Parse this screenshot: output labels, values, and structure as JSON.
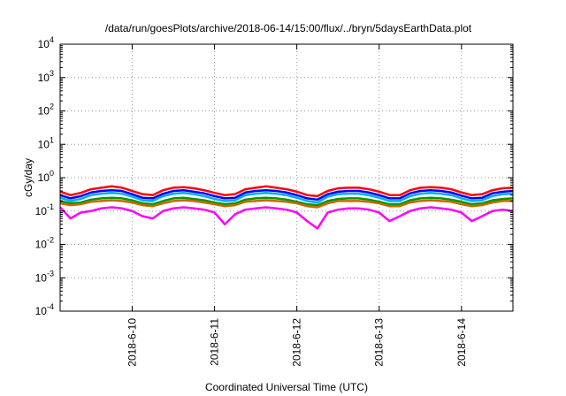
{
  "chart_data": {
    "type": "line",
    "title": "/data/run/goesPlots/archive/2018-06-14/15:00/flux/../bryn/5daysEarthData.plot",
    "xlabel": "Coordinated Universal Time (UTC)",
    "ylabel": "cGy/day",
    "y_scale": "log",
    "ylim": [
      0.0001,
      10000
    ],
    "xlim": [
      "2018-06-09T03:00",
      "2018-06-14T15:00"
    ],
    "grid": true,
    "legend": "none",
    "y_ticks": [
      {
        "value": 0.0001,
        "base": "10",
        "exp": "-4"
      },
      {
        "value": 0.001,
        "base": "10",
        "exp": "-3"
      },
      {
        "value": 0.01,
        "base": "10",
        "exp": "-2"
      },
      {
        "value": 0.1,
        "base": "10",
        "exp": "-1"
      },
      {
        "value": 1,
        "base": "10",
        "exp": "0"
      },
      {
        "value": 10,
        "base": "10",
        "exp": "1"
      },
      {
        "value": 100,
        "base": "10",
        "exp": "2"
      },
      {
        "value": 1000,
        "base": "10",
        "exp": "3"
      },
      {
        "value": 10000,
        "base": "10",
        "exp": "4"
      }
    ],
    "x_ticks": [
      {
        "label": "2018-6-10",
        "value": "2018-06-10T00:00"
      },
      {
        "label": "2018-6-11",
        "value": "2018-06-11T00:00"
      },
      {
        "label": "2018-6-12",
        "value": "2018-06-12T00:00"
      },
      {
        "label": "2018-6-13",
        "value": "2018-06-13T00:00"
      },
      {
        "label": "2018-6-14",
        "value": "2018-06-14T00:00"
      }
    ],
    "x": [
      "2018-06-09T03:00",
      "2018-06-09T06:00",
      "2018-06-09T09:00",
      "2018-06-09T12:00",
      "2018-06-09T15:00",
      "2018-06-09T18:00",
      "2018-06-09T21:00",
      "2018-06-10T00:00",
      "2018-06-10T03:00",
      "2018-06-10T06:00",
      "2018-06-10T09:00",
      "2018-06-10T12:00",
      "2018-06-10T15:00",
      "2018-06-10T18:00",
      "2018-06-10T21:00",
      "2018-06-11T00:00",
      "2018-06-11T03:00",
      "2018-06-11T06:00",
      "2018-06-11T09:00",
      "2018-06-11T12:00",
      "2018-06-11T15:00",
      "2018-06-11T18:00",
      "2018-06-11T21:00",
      "2018-06-12T00:00",
      "2018-06-12T03:00",
      "2018-06-12T06:00",
      "2018-06-12T09:00",
      "2018-06-12T12:00",
      "2018-06-12T15:00",
      "2018-06-12T18:00",
      "2018-06-12T21:00",
      "2018-06-13T00:00",
      "2018-06-13T03:00",
      "2018-06-13T06:00",
      "2018-06-13T09:00",
      "2018-06-13T12:00",
      "2018-06-13T15:00",
      "2018-06-13T18:00",
      "2018-06-13T21:00",
      "2018-06-14T00:00",
      "2018-06-14T03:00",
      "2018-06-14T06:00",
      "2018-06-14T09:00",
      "2018-06-14T12:00",
      "2018-06-14T15:00"
    ],
    "series": [
      {
        "color": "#ff0000",
        "values": [
          0.38,
          0.3,
          0.35,
          0.45,
          0.5,
          0.55,
          0.5,
          0.4,
          0.32,
          0.3,
          0.42,
          0.5,
          0.52,
          0.48,
          0.42,
          0.35,
          0.3,
          0.32,
          0.45,
          0.5,
          0.55,
          0.5,
          0.45,
          0.38,
          0.3,
          0.28,
          0.4,
          0.48,
          0.5,
          0.5,
          0.45,
          0.38,
          0.3,
          0.3,
          0.42,
          0.5,
          0.52,
          0.5,
          0.45,
          0.36,
          0.3,
          0.32,
          0.42,
          0.48,
          0.5
        ]
      },
      {
        "color": "#0000ff",
        "values": [
          0.3,
          0.24,
          0.28,
          0.36,
          0.4,
          0.42,
          0.4,
          0.32,
          0.25,
          0.24,
          0.33,
          0.4,
          0.42,
          0.38,
          0.34,
          0.28,
          0.24,
          0.25,
          0.36,
          0.4,
          0.42,
          0.4,
          0.36,
          0.3,
          0.24,
          0.22,
          0.32,
          0.38,
          0.4,
          0.4,
          0.36,
          0.3,
          0.24,
          0.24,
          0.34,
          0.4,
          0.42,
          0.4,
          0.36,
          0.29,
          0.24,
          0.25,
          0.34,
          0.38,
          0.4
        ]
      },
      {
        "color": "#00aaff",
        "values": [
          0.25,
          0.2,
          0.23,
          0.3,
          0.33,
          0.35,
          0.33,
          0.27,
          0.21,
          0.2,
          0.28,
          0.33,
          0.35,
          0.32,
          0.28,
          0.23,
          0.2,
          0.21,
          0.3,
          0.33,
          0.35,
          0.33,
          0.3,
          0.25,
          0.2,
          0.18,
          0.27,
          0.32,
          0.33,
          0.33,
          0.3,
          0.25,
          0.2,
          0.2,
          0.28,
          0.33,
          0.35,
          0.33,
          0.3,
          0.24,
          0.2,
          0.21,
          0.28,
          0.32,
          0.33
        ]
      },
      {
        "color": "#009900",
        "values": [
          0.2,
          0.17,
          0.18,
          0.22,
          0.24,
          0.25,
          0.24,
          0.21,
          0.17,
          0.16,
          0.2,
          0.24,
          0.25,
          0.23,
          0.21,
          0.18,
          0.16,
          0.17,
          0.22,
          0.24,
          0.25,
          0.24,
          0.22,
          0.19,
          0.16,
          0.15,
          0.2,
          0.23,
          0.24,
          0.24,
          0.22,
          0.19,
          0.16,
          0.16,
          0.21,
          0.24,
          0.25,
          0.24,
          0.22,
          0.19,
          0.16,
          0.17,
          0.21,
          0.23,
          0.24
        ]
      },
      {
        "color": "#cc6600",
        "values": [
          0.17,
          0.15,
          0.16,
          0.19,
          0.2,
          0.21,
          0.2,
          0.18,
          0.15,
          0.14,
          0.17,
          0.2,
          0.21,
          0.2,
          0.18,
          0.16,
          0.14,
          0.15,
          0.19,
          0.2,
          0.21,
          0.2,
          0.19,
          0.17,
          0.14,
          0.13,
          0.17,
          0.2,
          0.2,
          0.2,
          0.19,
          0.17,
          0.14,
          0.14,
          0.18,
          0.2,
          0.21,
          0.2,
          0.19,
          0.16,
          0.14,
          0.15,
          0.18,
          0.2,
          0.2
        ]
      },
      {
        "color": "#ff00ff",
        "values": [
          0.13,
          0.06,
          0.09,
          0.1,
          0.12,
          0.13,
          0.12,
          0.1,
          0.07,
          0.06,
          0.1,
          0.12,
          0.13,
          0.12,
          0.11,
          0.09,
          0.04,
          0.08,
          0.11,
          0.12,
          0.13,
          0.12,
          0.11,
          0.09,
          0.05,
          0.03,
          0.09,
          0.11,
          0.12,
          0.12,
          0.11,
          0.09,
          0.05,
          0.07,
          0.1,
          0.12,
          0.13,
          0.12,
          0.11,
          0.09,
          0.05,
          0.07,
          0.1,
          0.11,
          0.1
        ]
      }
    ]
  }
}
